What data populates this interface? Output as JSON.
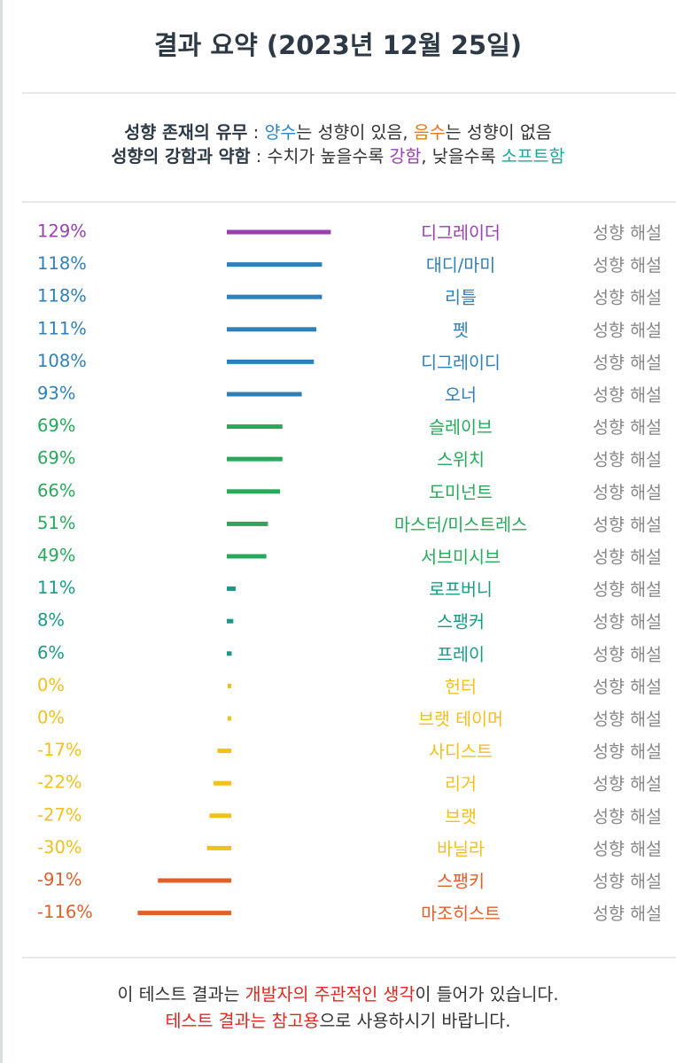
{
  "title": "결과 요약 (2023년 12월 25일)",
  "legend": {
    "line1": {
      "label": "성향 존재의 유무",
      "sep": " : ",
      "pos_word": "양수",
      "pos_rest": "는 성향이 있음, ",
      "neg_word": "음수",
      "neg_rest": "는 성향이 없음"
    },
    "line2": {
      "label": "성향의 강함과 약함",
      "sep": " : ",
      "pre": "수치가 높을수록 ",
      "strong_word": "강함",
      "mid": ", 낮을수록 ",
      "soft_word": "소프트함"
    }
  },
  "chart_data": {
    "type": "bar",
    "orientation": "horizontal",
    "categories": [
      "디그레이더",
      "대디/마미",
      "리틀",
      "펫",
      "디그레이디",
      "오너",
      "슬레이브",
      "스위치",
      "도미넌트",
      "마스터/미스트레스",
      "서브미시브",
      "로프버니",
      "스팽커",
      "프레이",
      "헌터",
      "브랫 테이머",
      "사디스트",
      "리거",
      "브랫",
      "바닐라",
      "스팽키",
      "마조히스트"
    ],
    "values": [
      129,
      118,
      118,
      111,
      108,
      93,
      69,
      69,
      66,
      51,
      49,
      11,
      8,
      6,
      0,
      0,
      -17,
      -22,
      -27,
      -30,
      -91,
      -116
    ],
    "value_labels": [
      "129%",
      "118%",
      "118%",
      "111%",
      "108%",
      "93%",
      "69%",
      "69%",
      "66%",
      "51%",
      "49%",
      "11%",
      "8%",
      "6%",
      "0%",
      "0%",
      "-17%",
      "-22%",
      "-27%",
      "-30%",
      "-91%",
      "-116%"
    ],
    "colors": [
      "#9a3fb0",
      "#2f7fb8",
      "#2f7fb8",
      "#2f7fb8",
      "#2f7fb8",
      "#2f7fb8",
      "#27a85a",
      "#27a85a",
      "#27a85a",
      "#27a85a",
      "#27a85a",
      "#1a9a86",
      "#1a9a86",
      "#1a9a86",
      "#f2bf1d",
      "#f2bf1d",
      "#f2bf1d",
      "#f2bf1d",
      "#f2bf1d",
      "#f2bf1d",
      "#e0602b",
      "#e0602b"
    ],
    "unit": "%",
    "link_label": "성향 해설",
    "link_color": "#888888"
  },
  "footer": {
    "line1": {
      "pre": "이 테스트 결과는 ",
      "red": "개발자의 주관적인 생각",
      "post": "이 들어가 있습니다."
    },
    "line2": {
      "red": "테스트 결과는 참고용",
      "post": "으로 사용하시기 바랍니다."
    }
  }
}
